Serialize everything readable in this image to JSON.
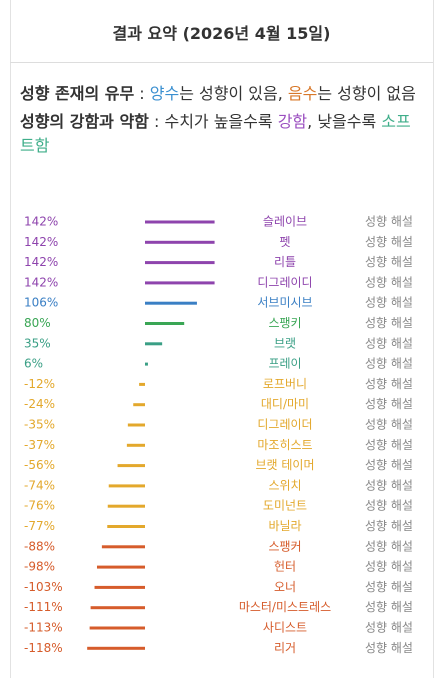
{
  "header": {
    "title": "결과 요약 (2026년 4월 15일)"
  },
  "description": {
    "lines": [
      {
        "parts": [
          {
            "text": "성향 존재의 유무",
            "style": "bold"
          },
          {
            "text": " : "
          },
          {
            "text": "양수",
            "color": "#3a8fd0"
          },
          {
            "text": "는 성향이 있음, "
          },
          {
            "text": "음수",
            "color": "#d8782a"
          },
          {
            "text": "는 성향이 없음"
          }
        ]
      },
      {
        "parts": [
          {
            "text": "성향의 강함과 약함",
            "style": "bold"
          },
          {
            "text": " : 수치가 높을수록 "
          },
          {
            "text": "강함",
            "color": "#9b4fc0"
          },
          {
            "text": ", 낮을수록 "
          },
          {
            "text": "소프트함",
            "color": "#3fae8a"
          }
        ]
      }
    ]
  },
  "chart_data": {
    "type": "bar",
    "orientation": "horizontal",
    "categories": [
      "슬레이브",
      "펫",
      "리틀",
      "디그레이디",
      "서브미시브",
      "스팽키",
      "브랫",
      "프레이",
      "로프버니",
      "대디/마미",
      "디그레이더",
      "마조히스트",
      "브랫 테이머",
      "스위치",
      "도미넌트",
      "바닐라",
      "스팽커",
      "헌터",
      "오너",
      "마스터/미스트레스",
      "사디스트",
      "리거"
    ],
    "values": [
      142,
      142,
      142,
      142,
      106,
      80,
      35,
      6,
      -12,
      -24,
      -35,
      -37,
      -56,
      -74,
      -76,
      -77,
      -88,
      -98,
      -103,
      -111,
      -113,
      -118
    ],
    "value_labels": [
      "142%",
      "142%",
      "142%",
      "142%",
      "106%",
      "80%",
      "35%",
      "6%",
      "-12%",
      "-24%",
      "-35%",
      "-37%",
      "-56%",
      "-74%",
      "-76%",
      "-77%",
      "-88%",
      "-98%",
      "-103%",
      "-111%",
      "-113%",
      "-118%"
    ],
    "colors": [
      "#8e44ad",
      "#8e44ad",
      "#8e44ad",
      "#8e44ad",
      "#3a7fc4",
      "#3aa655",
      "#3a9f85",
      "#3a9f85",
      "#e3a82c",
      "#e3a82c",
      "#e3a82c",
      "#e3a82c",
      "#e3a82c",
      "#e3a82c",
      "#e3a82c",
      "#e3a82c",
      "#d65c2b",
      "#d65c2b",
      "#d65c2b",
      "#d65c2b",
      "#d65c2b",
      "#d65c2b"
    ],
    "button_label": "성향 해설"
  }
}
